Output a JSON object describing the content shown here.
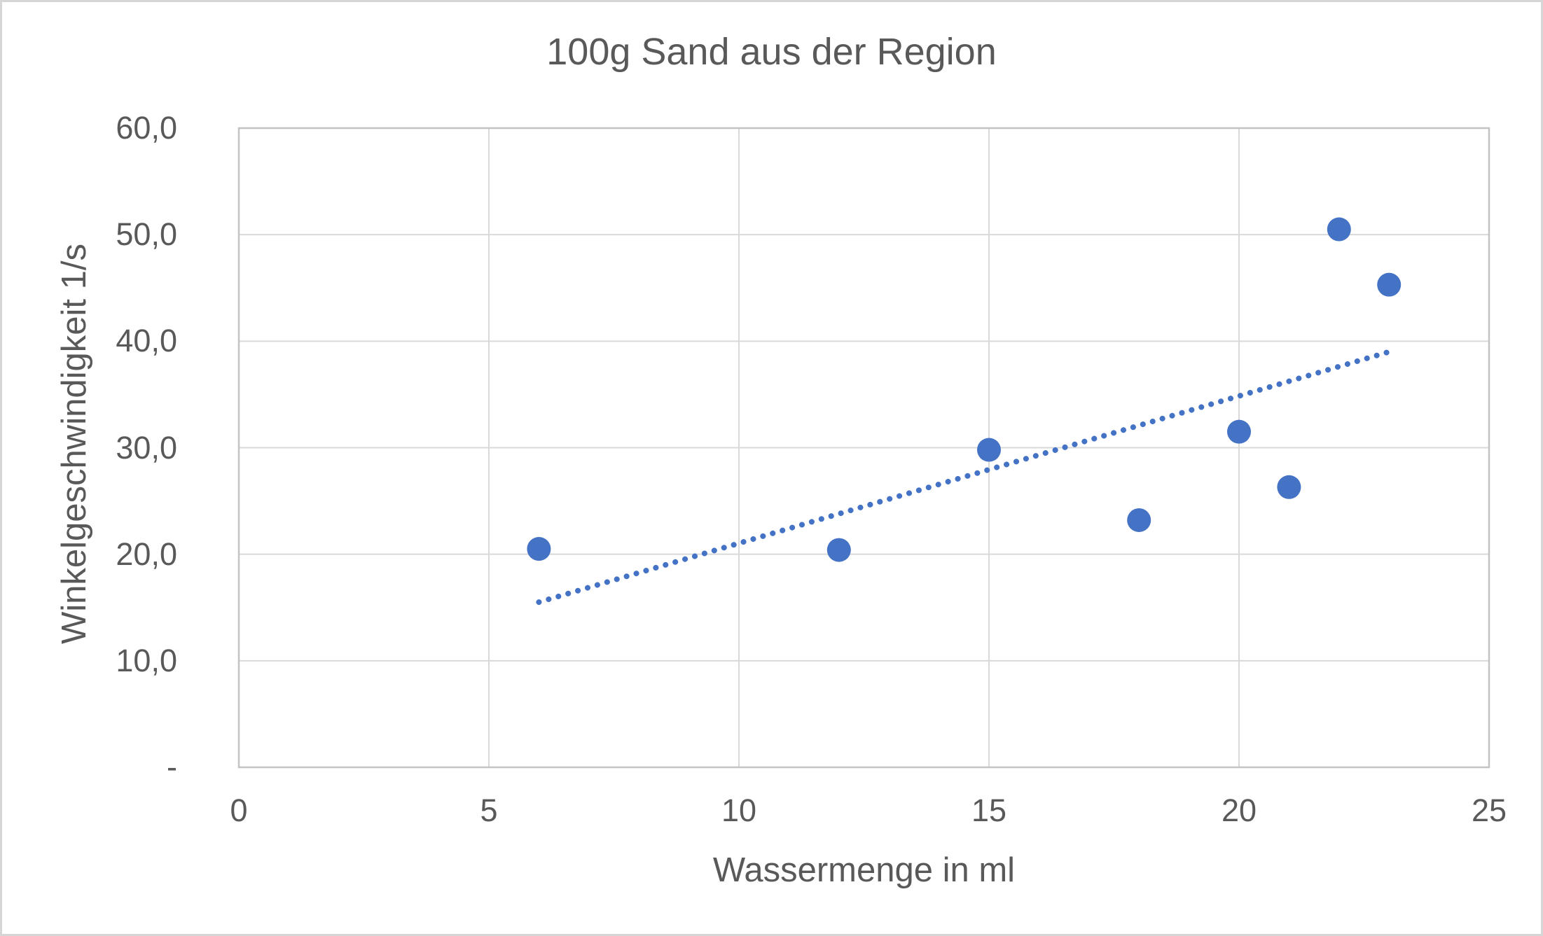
{
  "chart_data": {
    "type": "scatter",
    "title": "100g Sand aus der Region",
    "xlabel": "Wassermenge in ml",
    "ylabel": "Winkelgeschwindigkeit 1/s",
    "xlim": [
      0,
      25
    ],
    "ylim": [
      0,
      60
    ],
    "grid": true,
    "legend": false,
    "x_ticks": [
      {
        "value": 0,
        "label": "0"
      },
      {
        "value": 5,
        "label": "5"
      },
      {
        "value": 10,
        "label": "10"
      },
      {
        "value": 15,
        "label": "15"
      },
      {
        "value": 20,
        "label": "20"
      },
      {
        "value": 25,
        "label": "25"
      }
    ],
    "y_ticks": [
      {
        "value": 0,
        "label": "-"
      },
      {
        "value": 10,
        "label": "10,0"
      },
      {
        "value": 20,
        "label": "20,0"
      },
      {
        "value": 30,
        "label": "30,0"
      },
      {
        "value": 40,
        "label": "40,0"
      },
      {
        "value": 50,
        "label": "50,0"
      },
      {
        "value": 60,
        "label": "60,0"
      }
    ],
    "points": [
      {
        "x": 6,
        "y": 20.5
      },
      {
        "x": 12,
        "y": 20.4
      },
      {
        "x": 15,
        "y": 29.8
      },
      {
        "x": 18,
        "y": 23.2
      },
      {
        "x": 20,
        "y": 31.5
      },
      {
        "x": 21,
        "y": 26.3
      },
      {
        "x": 22,
        "y": 50.5
      },
      {
        "x": 23,
        "y": 45.3
      }
    ],
    "trendline": {
      "type": "linear",
      "style": "dotted",
      "start": {
        "x": 6,
        "y": 15.5
      },
      "end": {
        "x": 23,
        "y": 39.0
      }
    },
    "colors": {
      "marker": "#4472c4",
      "trendline": "#4472c4",
      "gridline": "#d9d9d9",
      "plot_border": "#c3c3c3",
      "text": "#595959",
      "background": "#ffffff",
      "frame_border": "#d6d6d6"
    }
  }
}
